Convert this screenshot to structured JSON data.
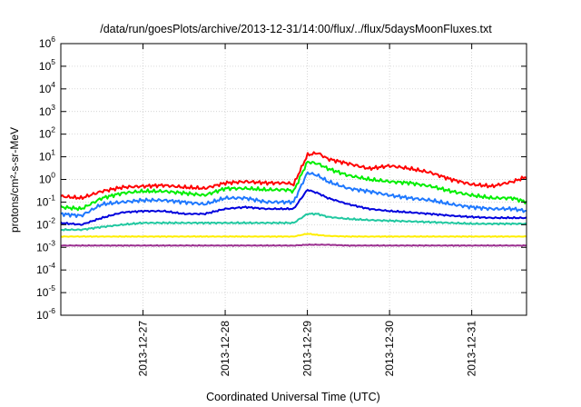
{
  "chart_data": {
    "type": "line",
    "title": "/data/run/goesPlots/archive/2013-12-31/14:00/flux/../flux/5daysMoonFluxes.txt",
    "xlabel": "Coordinated Universal Time (UTC)",
    "ylabel": "protons/cm²-s-sr-MeV",
    "yscale": "log",
    "ylim": [
      1e-06,
      1000000.0
    ],
    "xlim": [
      "2013-12-26 00:00",
      "2013-12-31 16:00"
    ],
    "grid": true,
    "legend": "none",
    "x_ticks": [
      "2013-12-27",
      "2013-12-28",
      "2013-12-29",
      "2013-12-30",
      "2013-12-31"
    ],
    "y_tick_exponents": [
      "-6",
      "-5",
      "-4",
      "-3",
      "-2",
      "-1",
      "0",
      "1",
      "2",
      "3",
      "4",
      "5",
      "6"
    ],
    "y_tick_base": "10",
    "x_time_points": [
      "2013-12-26 00:00",
      "2013-12-26 06:00",
      "2013-12-26 12:00",
      "2013-12-26 18:00",
      "2013-12-27 00:00",
      "2013-12-27 06:00",
      "2013-12-27 12:00",
      "2013-12-27 18:00",
      "2013-12-28 00:00",
      "2013-12-28 06:00",
      "2013-12-28 12:00",
      "2013-12-28 18:00",
      "2013-12-28 20:00",
      "2013-12-29 00:00",
      "2013-12-29 03:00",
      "2013-12-29 06:00",
      "2013-12-29 12:00",
      "2013-12-29 18:00",
      "2013-12-30 00:00",
      "2013-12-30 06:00",
      "2013-12-30 12:00",
      "2013-12-30 18:00",
      "2013-12-31 00:00",
      "2013-12-31 06:00",
      "2013-12-31 12:00",
      "2013-12-31 16:00"
    ],
    "series": [
      {
        "color": "#ff0000",
        "values": [
          0.18,
          0.15,
          0.3,
          0.45,
          0.5,
          0.55,
          0.45,
          0.4,
          0.7,
          0.8,
          0.7,
          0.7,
          0.6,
          12,
          15,
          8,
          5,
          3,
          4,
          3,
          2,
          1,
          0.6,
          0.5,
          0.8,
          1.3
        ]
      },
      {
        "color": "#00ee00",
        "values": [
          0.06,
          0.05,
          0.15,
          0.25,
          0.3,
          0.3,
          0.25,
          0.2,
          0.4,
          0.4,
          0.35,
          0.35,
          0.3,
          6,
          5,
          3,
          1.5,
          1,
          0.8,
          0.7,
          0.5,
          0.3,
          0.2,
          0.15,
          0.15,
          0.1
        ]
      },
      {
        "color": "#1e78ff",
        "values": [
          0.03,
          0.025,
          0.08,
          0.1,
          0.12,
          0.12,
          0.1,
          0.08,
          0.15,
          0.15,
          0.1,
          0.1,
          0.1,
          2,
          1.5,
          0.8,
          0.4,
          0.3,
          0.2,
          0.15,
          0.12,
          0.08,
          0.06,
          0.05,
          0.05,
          0.04
        ]
      },
      {
        "color": "#0000dd",
        "values": [
          0.012,
          0.01,
          0.02,
          0.035,
          0.04,
          0.04,
          0.03,
          0.03,
          0.05,
          0.06,
          0.05,
          0.05,
          0.05,
          0.35,
          0.25,
          0.15,
          0.08,
          0.05,
          0.04,
          0.035,
          0.03,
          0.025,
          0.022,
          0.02,
          0.02,
          0.02
        ]
      },
      {
        "color": "#20c8a0",
        "values": [
          0.006,
          0.006,
          0.008,
          0.01,
          0.012,
          0.012,
          0.012,
          0.012,
          0.012,
          0.012,
          0.012,
          0.012,
          0.012,
          0.03,
          0.03,
          0.022,
          0.018,
          0.016,
          0.015,
          0.014,
          0.013,
          0.012,
          0.011,
          0.011,
          0.011,
          0.011
        ]
      },
      {
        "color": "#ffee00",
        "values": [
          0.003,
          0.003,
          0.003,
          0.003,
          0.003,
          0.003,
          0.003,
          0.003,
          0.003,
          0.003,
          0.003,
          0.003,
          0.003,
          0.004,
          0.0035,
          0.0032,
          0.003,
          0.003,
          0.003,
          0.003,
          0.003,
          0.003,
          0.003,
          0.003,
          0.003,
          0.003
        ]
      },
      {
        "color": "#9b3090",
        "values": [
          0.0012,
          0.0012,
          0.0012,
          0.0012,
          0.0012,
          0.0012,
          0.0012,
          0.0012,
          0.0012,
          0.0012,
          0.0012,
          0.0012,
          0.0012,
          0.0013,
          0.0013,
          0.0013,
          0.0012,
          0.0012,
          0.0012,
          0.0012,
          0.0012,
          0.0012,
          0.0012,
          0.0012,
          0.0012,
          0.0012
        ]
      }
    ]
  }
}
